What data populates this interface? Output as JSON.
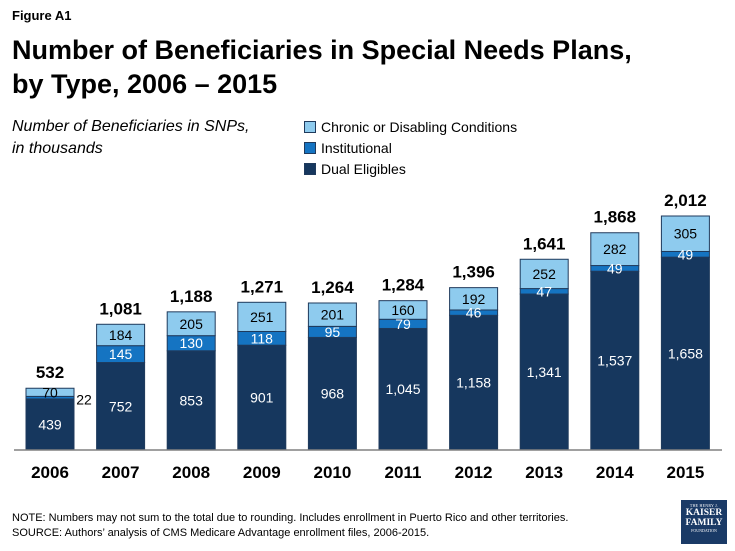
{
  "figure_label": "Figure A1",
  "title_line1": "Number of Beneficiaries in Special Needs Plans,",
  "title_line2": "by Type, 2006 – 2015",
  "subtitle_line1": "Number of Beneficiaries in SNPs,",
  "subtitle_line2": "in thousands",
  "note": "NOTE:  Numbers may not sum to the total due to rounding.   Includes enrollment in Puerto Rico and other territories.",
  "source": "SOURCE:  Authors’ analysis of CMS Medicare Advantage enrollment files, 2006-2015.",
  "logo": {
    "line1": "THE HENRY J.",
    "line2": "KAISER",
    "line3": "FAMILY",
    "line4": "FOUNDATION"
  },
  "colors": {
    "dual": "#16375e",
    "institutional": "#1574c2",
    "chronic": "#8ecbee",
    "stroke": "#1f3a5c"
  },
  "chart_data": {
    "type": "bar",
    "stacked": true,
    "title": "Number of Beneficiaries in Special Needs Plans, by Type, 2006 – 2015",
    "ylabel": "Number of Beneficiaries in SNPs, in thousands",
    "categories": [
      "2006",
      "2007",
      "2008",
      "2009",
      "2010",
      "2011",
      "2012",
      "2013",
      "2014",
      "2015"
    ],
    "series": [
      {
        "name": "Dual Eligibles",
        "values": [
          439,
          752,
          853,
          901,
          968,
          1045,
          1158,
          1341,
          1537,
          1658
        ],
        "labels": [
          "439",
          "752",
          "853",
          "901",
          "968",
          "1,045",
          "1,158",
          "1,341",
          "1,537",
          "1,658"
        ]
      },
      {
        "name": "Institutional",
        "values": [
          22,
          145,
          130,
          118,
          95,
          79,
          46,
          47,
          49,
          49
        ],
        "labels": [
          "22",
          "145",
          "130",
          "118",
          "95",
          "79",
          "46",
          "47",
          "49",
          "49"
        ]
      },
      {
        "name": "Chronic or Disabling Conditions",
        "values": [
          70,
          184,
          205,
          251,
          201,
          160,
          192,
          252,
          282,
          305
        ],
        "labels": [
          "70",
          "184",
          "205",
          "251",
          "201",
          "160",
          "192",
          "252",
          "282",
          "305"
        ]
      }
    ],
    "totals": [
      532,
      1081,
      1188,
      1271,
      1264,
      1284,
      1396,
      1641,
      1868,
      2012
    ],
    "total_labels": [
      "532",
      "1,081",
      "1,188",
      "1,271",
      "1,264",
      "1,284",
      "1,396",
      "1,641",
      "1,868",
      "2,012"
    ],
    "legend_order": [
      "Chronic or Disabling Conditions",
      "Institutional",
      "Dual Eligibles"
    ],
    "ylim": [
      0,
      2200
    ],
    "legend": "top-center"
  }
}
